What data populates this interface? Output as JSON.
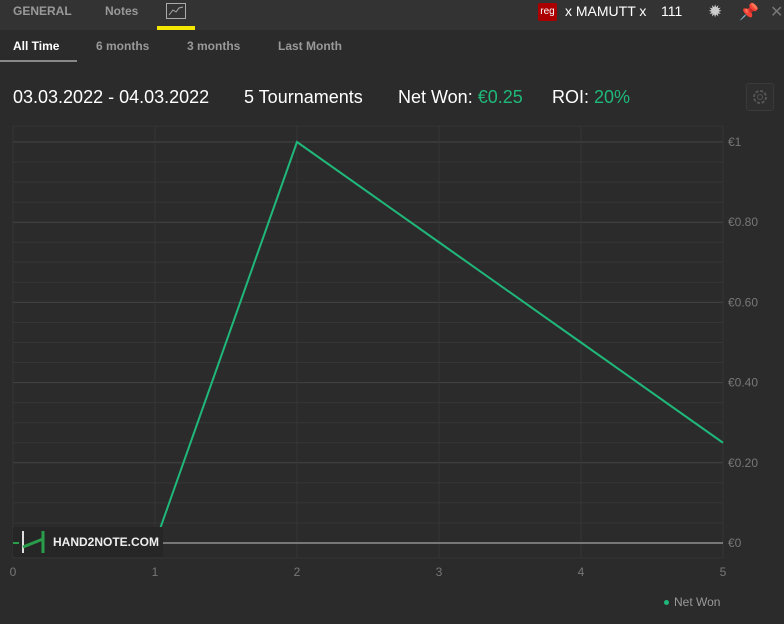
{
  "topbar": {
    "tabs": [
      "GENERAL",
      "Notes"
    ],
    "chart_tab_icon": "line-chart-icon",
    "badge": "reg",
    "player": "x MAMUTT x",
    "count": "111",
    "accent": "#f5e800"
  },
  "period_tabs": [
    {
      "label": "All Time",
      "active": true
    },
    {
      "label": "6 months"
    },
    {
      "label": "3 months"
    },
    {
      "label": "Last Month"
    }
  ],
  "summary": {
    "date_range": "03.03.2022 - 04.03.2022",
    "tournaments": "5 Tournaments",
    "net_won_label": "Net Won:",
    "net_won_value": "€0.25",
    "roi_label": "ROI:",
    "roi_value": "20%",
    "positive_color": "#1fb87a"
  },
  "logo": {
    "text": "HAND2NOTE.COM"
  },
  "chart_data": {
    "type": "line",
    "x": [
      0,
      1,
      2,
      3,
      4,
      5
    ],
    "series": [
      {
        "name": "Net Won",
        "values": [
          0,
          0,
          1,
          0.75,
          0.5,
          0.25
        ],
        "color": "#1fb87a"
      }
    ],
    "xlim": [
      0,
      5
    ],
    "ylim": [
      0,
      1
    ],
    "xticks": [
      "0",
      "1",
      "2",
      "3",
      "4",
      "5"
    ],
    "yticks": [
      {
        "v": 0,
        "label": "€0"
      },
      {
        "v": 0.2,
        "label": "€0.20"
      },
      {
        "v": 0.4,
        "label": "€0.40"
      },
      {
        "v": 0.6,
        "label": "€0.60"
      },
      {
        "v": 0.8,
        "label": "€0.80"
      },
      {
        "v": 1,
        "label": "€1"
      }
    ],
    "grid": true,
    "legend": "bottom-right"
  }
}
